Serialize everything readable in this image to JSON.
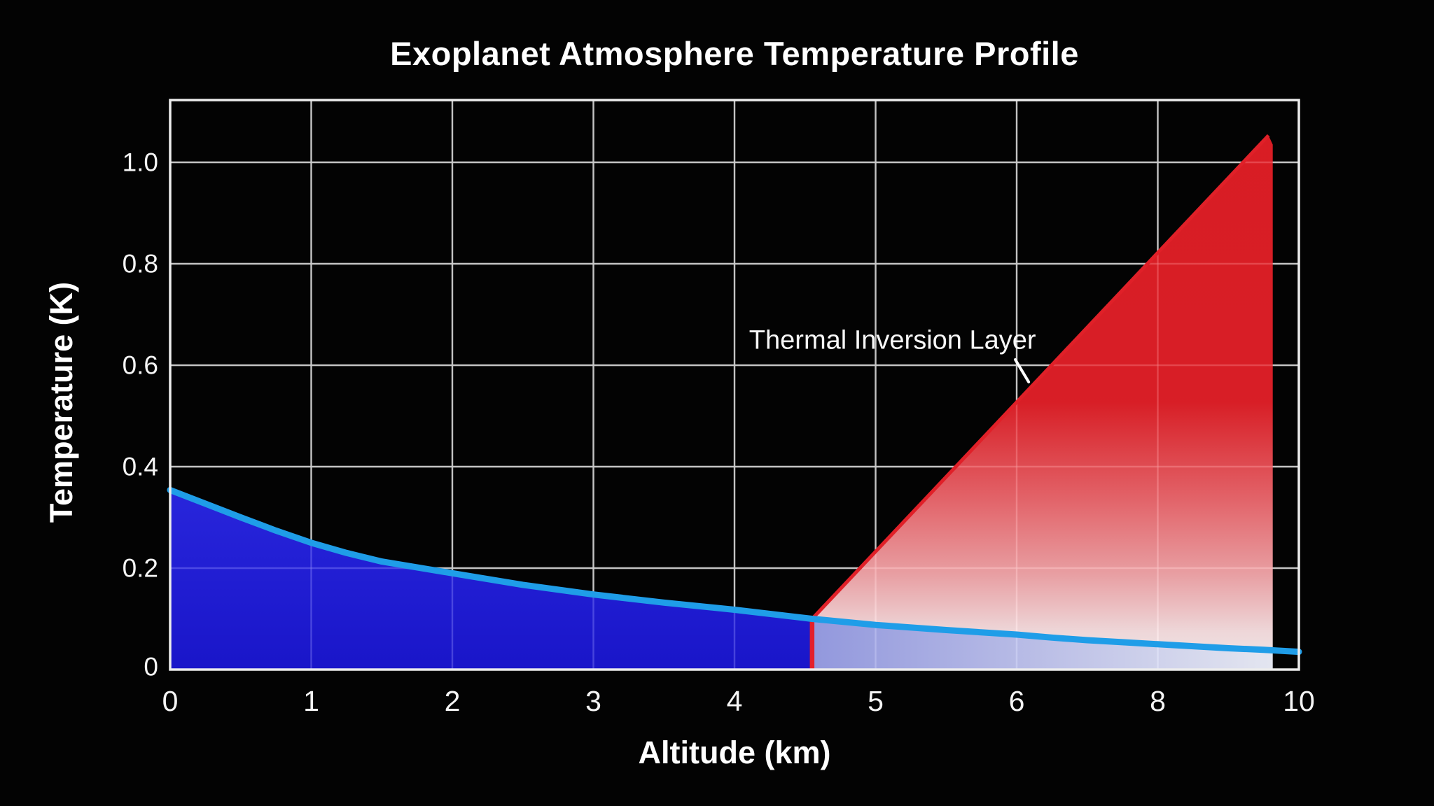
{
  "page": {
    "background": "#030303"
  },
  "chart_data": {
    "type": "area",
    "title": "Exoplanet Atmosphere Temperature Profile",
    "xlabel": "Altitude (km)",
    "ylabel": "Temperature (K)",
    "x_tick_labels": [
      "0",
      "1",
      "2",
      "3",
      "4",
      "5",
      "6",
      "8",
      "10"
    ],
    "x_tick_km": [
      0,
      1,
      2,
      3,
      4,
      5,
      6,
      8,
      10
    ],
    "y_tick_labels": [
      "1.0",
      "0.8",
      "0.6",
      "0.4",
      "0.2",
      "0"
    ],
    "y_tick_values": [
      1.0,
      0.8,
      0.6,
      0.4,
      0.2,
      0
    ],
    "xlim_km": [
      0,
      10
    ],
    "ylim": [
      0,
      1.123
    ],
    "grid": true,
    "legend": "none",
    "series": [
      {
        "name": "temperature-profile",
        "kind": "line-with-area",
        "points_km_K": [
          [
            0,
            0.354
          ],
          [
            0.25,
            0.327
          ],
          [
            0.5,
            0.3
          ],
          [
            0.75,
            0.274
          ],
          [
            1,
            0.25
          ],
          [
            1.25,
            0.23
          ],
          [
            1.5,
            0.213
          ],
          [
            2,
            0.19
          ],
          [
            2.5,
            0.167
          ],
          [
            3,
            0.148
          ],
          [
            3.5,
            0.132
          ],
          [
            4,
            0.118
          ],
          [
            4.55,
            0.1
          ],
          [
            5,
            0.088
          ],
          [
            5.5,
            0.078
          ],
          [
            6,
            0.069
          ],
          [
            6.5,
            0.063
          ],
          [
            7,
            0.058
          ],
          [
            7.5,
            0.054
          ],
          [
            8,
            0.05
          ],
          [
            8.5,
            0.046
          ],
          [
            9,
            0.042
          ],
          [
            9.5,
            0.039
          ],
          [
            9.63,
            0.038
          ],
          [
            10,
            0.035
          ]
        ]
      },
      {
        "name": "thermal-inversion",
        "kind": "gradient-area",
        "start_km_K": [
          4.55,
          0.1
        ],
        "peak_km_K": [
          9.57,
          1.053
        ],
        "bevel_km_K": [
          9.63,
          1.035
        ],
        "right_edge_km": 9.63
      }
    ],
    "annotation": {
      "text": "Thermal Inversion Layer",
      "anchor_km": 5.12,
      "anchor_K": 0.648,
      "pointer_from": [
        5.99,
        0.611
      ],
      "pointer_to": [
        6.17,
        0.567
      ]
    },
    "colors": {
      "background": "#030303",
      "plot_border": "#ececec",
      "grid": "#b9b9b9",
      "grid_over_fill": "#ffffff",
      "tick_text": "#f5f5f5",
      "curve_line": "#1f9de8",
      "blue_area_top": "#2b28ec",
      "blue_area_bottom": "#1b17d8",
      "inversion_edge": "#e02028",
      "inversion_vertical_line": "#e4202a",
      "red_gradient_stops": [
        [
          "0",
          "#e41e26"
        ],
        [
          "0.5",
          "#e32028"
        ],
        [
          "0.68",
          "#ee686e"
        ],
        [
          "0.82",
          "#f4a6aa"
        ],
        [
          "0.93",
          "#fae2e4"
        ],
        [
          "1",
          "#fdf3f4"
        ]
      ],
      "lavender_gradient_stops": [
        [
          "0",
          "#989ee6"
        ],
        [
          "1",
          "#edeffa"
        ]
      ]
    }
  }
}
